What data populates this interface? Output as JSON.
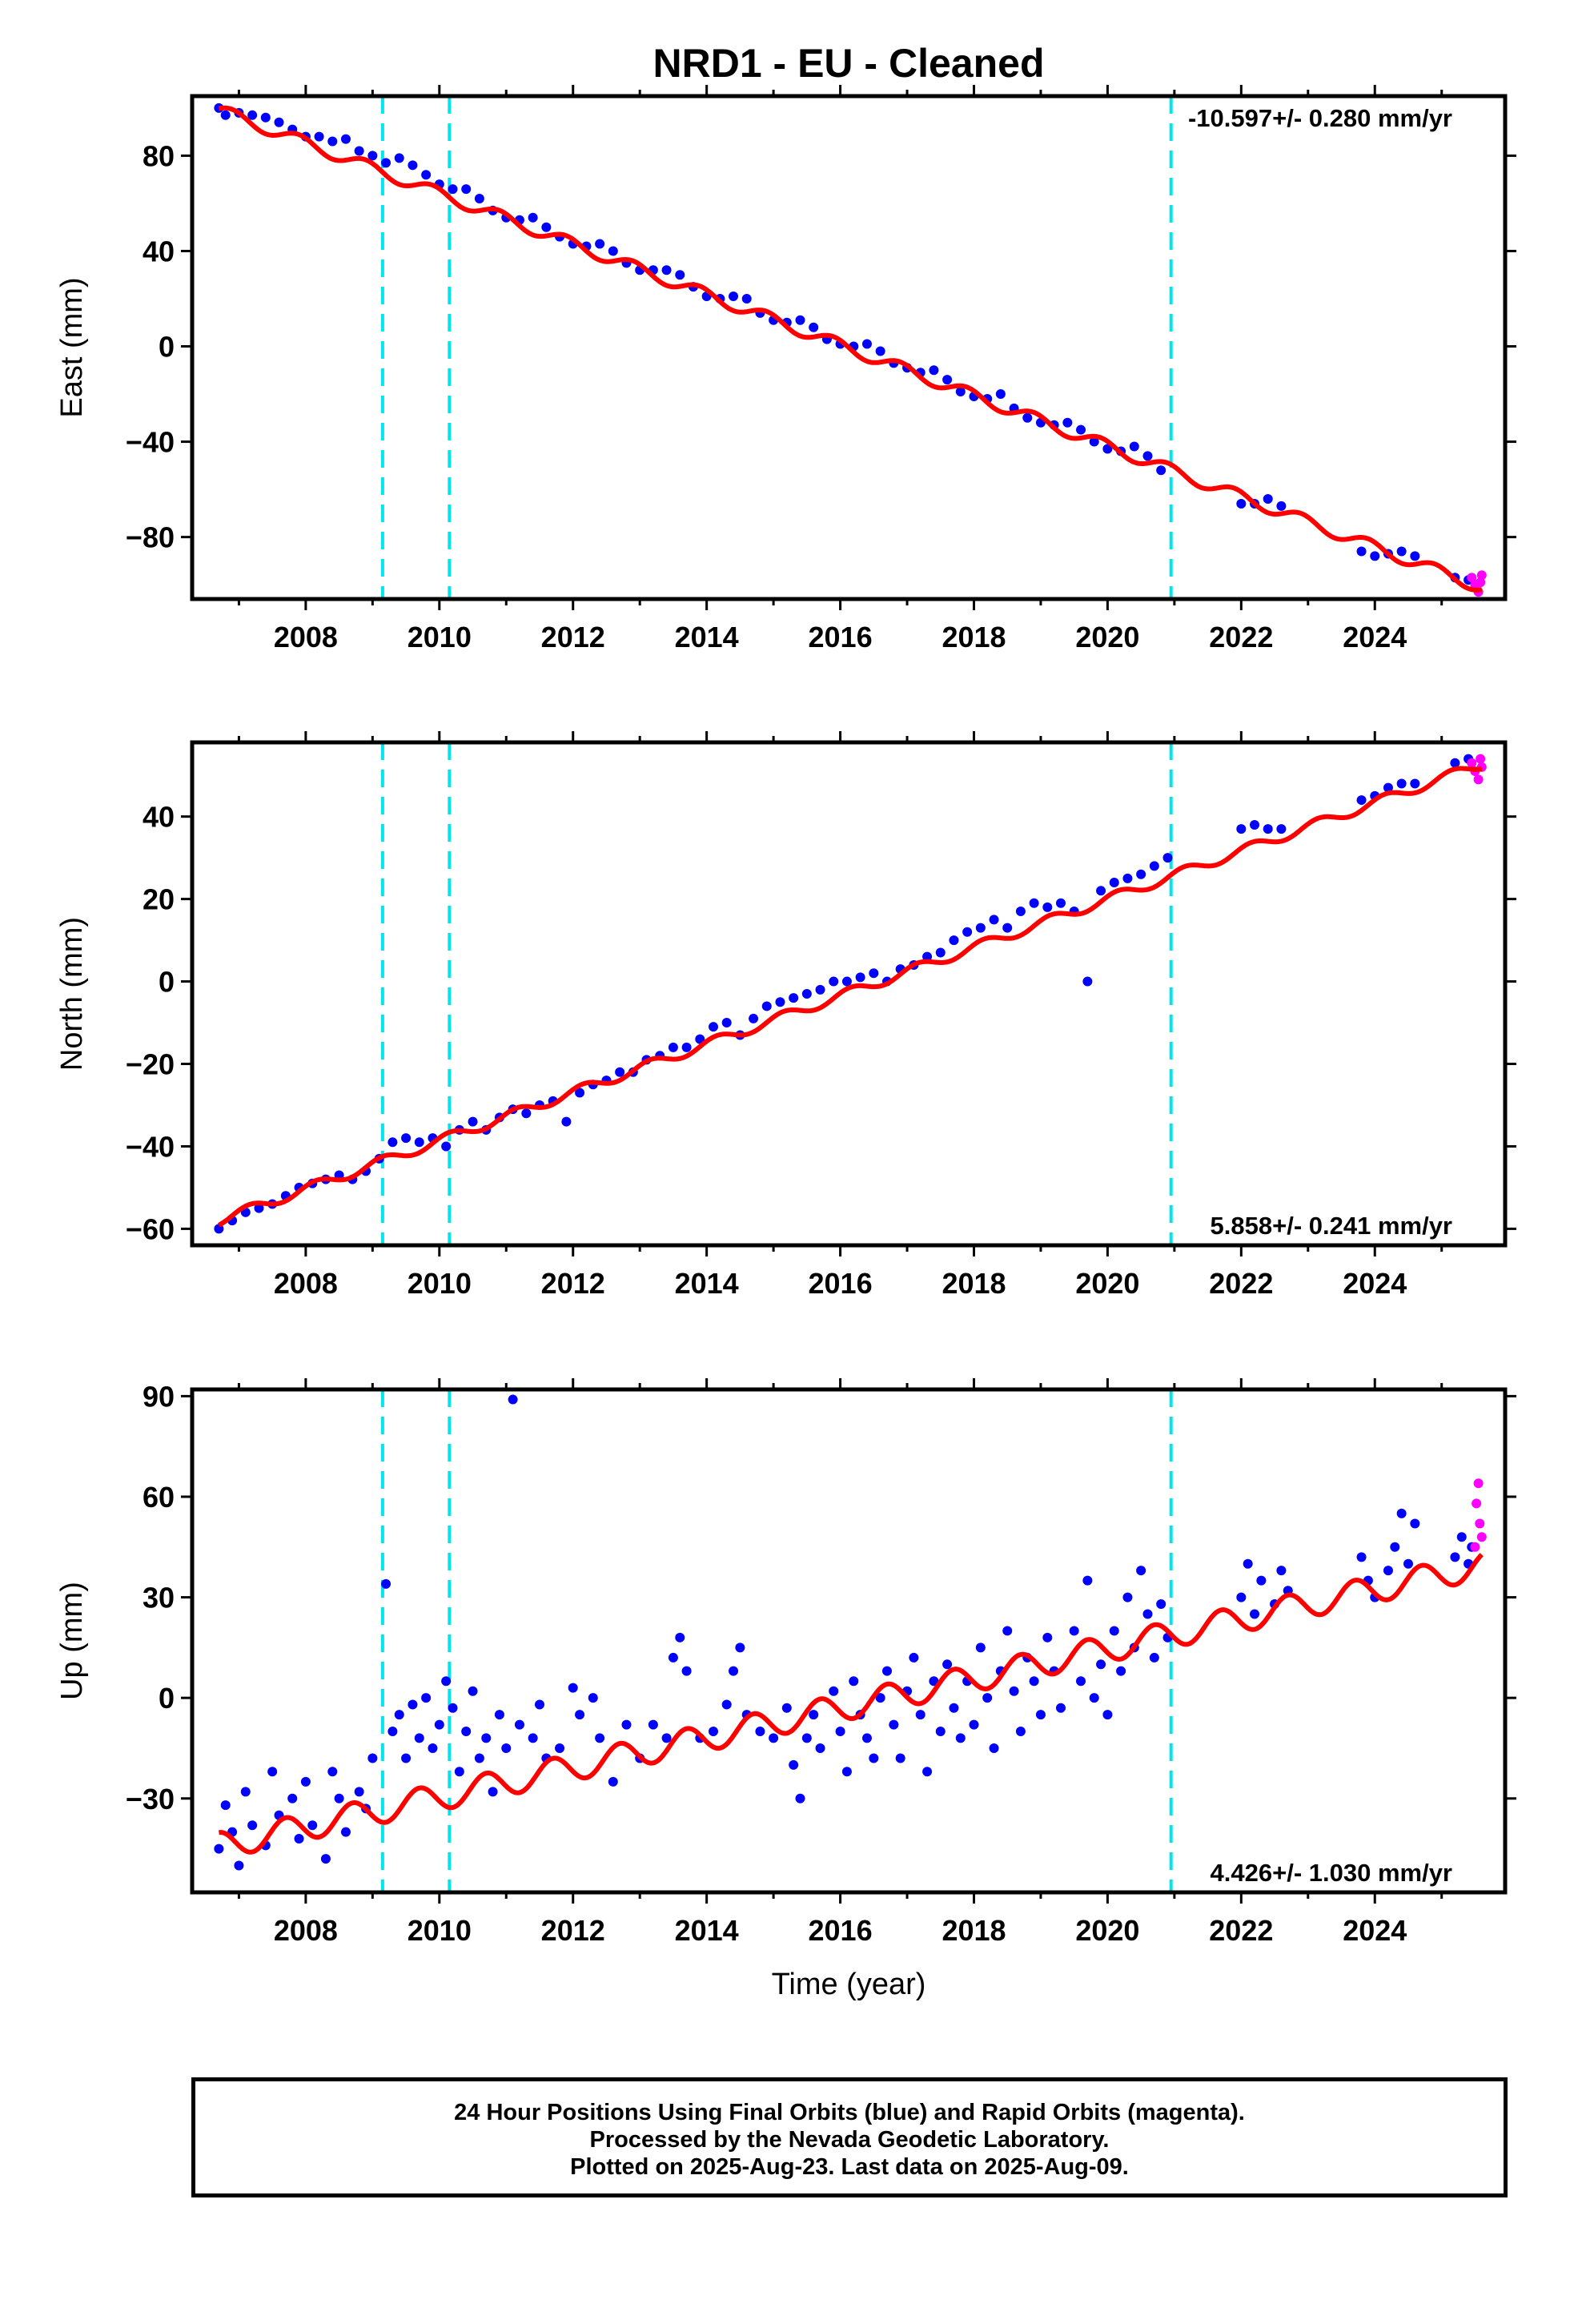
{
  "title": "NRD1  - EU - Cleaned",
  "xlabel": "Time (year)",
  "footer": {
    "line1": "24 Hour Positions Using Final Orbits (blue) and Rapid Orbits (magenta).",
    "line2": "Processed by the Nevada Geodetic Laboratory.",
    "line3": "Plotted on 2025-Aug-23. Last data on 2025-Aug-09."
  },
  "colors": {
    "final_orbits": "#0000ff",
    "rapid_orbits": "#ff00ff",
    "model": "#ff0000",
    "events": "#00e5ee"
  },
  "chart_data": [
    {
      "type": "scatter",
      "component": "East",
      "ylabel": "East (mm)",
      "rate_text": "-10.597+/- 0.280 mm/yr",
      "rate_position": "top-right",
      "xlim": [
        2006.3,
        2025.95
      ],
      "ylim": [
        -106,
        105
      ],
      "xticks": [
        2008,
        2010,
        2012,
        2014,
        2016,
        2018,
        2020,
        2022,
        2024
      ],
      "yticks": [
        -80,
        -40,
        0,
        40,
        80
      ],
      "grid": false,
      "event_lines": [
        2009.15,
        2010.15,
        2020.95
      ],
      "trend": {
        "rate": -10.597,
        "ref_year": 2016.0,
        "ref_value": 0.5,
        "amplitude": 2.5,
        "phase": 0.35
      },
      "final_orbits": [
        [
          2006.7,
          100
        ],
        [
          2006.8,
          97
        ],
        [
          2007.0,
          98
        ],
        [
          2007.2,
          97
        ],
        [
          2007.4,
          96
        ],
        [
          2007.6,
          94
        ],
        [
          2007.8,
          91
        ],
        [
          2008.0,
          88
        ],
        [
          2008.2,
          88
        ],
        [
          2008.4,
          86
        ],
        [
          2008.6,
          87
        ],
        [
          2008.8,
          82
        ],
        [
          2009.0,
          80
        ],
        [
          2009.2,
          77
        ],
        [
          2009.4,
          79
        ],
        [
          2009.6,
          76
        ],
        [
          2009.8,
          72
        ],
        [
          2010.0,
          68
        ],
        [
          2010.2,
          66
        ],
        [
          2010.4,
          66
        ],
        [
          2010.6,
          62
        ],
        [
          2010.8,
          57
        ],
        [
          2011.0,
          54
        ],
        [
          2011.2,
          53
        ],
        [
          2011.4,
          54
        ],
        [
          2011.6,
          50
        ],
        [
          2011.8,
          46
        ],
        [
          2012.0,
          43
        ],
        [
          2012.2,
          42
        ],
        [
          2012.4,
          43
        ],
        [
          2012.6,
          40
        ],
        [
          2012.8,
          35
        ],
        [
          2013.0,
          32
        ],
        [
          2013.2,
          32
        ],
        [
          2013.4,
          32
        ],
        [
          2013.6,
          30
        ],
        [
          2013.8,
          25
        ],
        [
          2014.0,
          21
        ],
        [
          2014.2,
          20
        ],
        [
          2014.4,
          21
        ],
        [
          2014.6,
          20
        ],
        [
          2014.8,
          14
        ],
        [
          2015.0,
          11
        ],
        [
          2015.2,
          10
        ],
        [
          2015.4,
          11
        ],
        [
          2015.6,
          8
        ],
        [
          2015.8,
          3
        ],
        [
          2016.0,
          1
        ],
        [
          2016.2,
          0
        ],
        [
          2016.4,
          1
        ],
        [
          2016.6,
          -2
        ],
        [
          2016.8,
          -7
        ],
        [
          2017.0,
          -9
        ],
        [
          2017.2,
          -11
        ],
        [
          2017.4,
          -10
        ],
        [
          2017.6,
          -14
        ],
        [
          2017.8,
          -19
        ],
        [
          2018.0,
          -21
        ],
        [
          2018.2,
          -22
        ],
        [
          2018.4,
          -20
        ],
        [
          2018.6,
          -26
        ],
        [
          2018.8,
          -30
        ],
        [
          2019.0,
          -32
        ],
        [
          2019.2,
          -33
        ],
        [
          2019.4,
          -32
        ],
        [
          2019.6,
          -35
        ],
        [
          2019.8,
          -40
        ],
        [
          2020.0,
          -43
        ],
        [
          2020.2,
          -44
        ],
        [
          2020.4,
          -42
        ],
        [
          2020.6,
          -46
        ],
        [
          2020.8,
          -52
        ],
        [
          2022.0,
          -66
        ],
        [
          2022.2,
          -66
        ],
        [
          2022.4,
          -64
        ],
        [
          2022.6,
          -67
        ],
        [
          2023.8,
          -86
        ],
        [
          2024.0,
          -88
        ],
        [
          2024.2,
          -87
        ],
        [
          2024.4,
          -86
        ],
        [
          2024.6,
          -88
        ],
        [
          2025.2,
          -97
        ],
        [
          2025.4,
          -98
        ]
      ],
      "rapid_orbits": [
        [
          2025.45,
          -97
        ],
        [
          2025.5,
          -100
        ],
        [
          2025.55,
          -103
        ],
        [
          2025.58,
          -99
        ],
        [
          2025.6,
          -96
        ]
      ]
    },
    {
      "type": "scatter",
      "component": "North",
      "ylabel": "North (mm)",
      "rate_text": "5.858+/- 0.241 mm/yr",
      "rate_position": "bottom-right",
      "xlim": [
        2006.3,
        2025.95
      ],
      "ylim": [
        -64,
        58
      ],
      "xticks": [
        2008,
        2010,
        2012,
        2014,
        2016,
        2018,
        2020,
        2022,
        2024
      ],
      "yticks": [
        -60,
        -40,
        -20,
        0,
        20,
        40
      ],
      "grid": false,
      "event_lines": [
        2009.15,
        2010.15,
        2020.95
      ],
      "trend": {
        "rate": 5.858,
        "ref_year": 2016.0,
        "ref_value": -3.5,
        "amplitude": 1.2,
        "phase": 0.1
      },
      "final_orbits": [
        [
          2006.7,
          -60
        ],
        [
          2006.9,
          -58
        ],
        [
          2007.1,
          -56
        ],
        [
          2007.3,
          -55
        ],
        [
          2007.5,
          -54
        ],
        [
          2007.7,
          -52
        ],
        [
          2007.9,
          -50
        ],
        [
          2008.1,
          -49
        ],
        [
          2008.3,
          -48
        ],
        [
          2008.5,
          -47
        ],
        [
          2008.7,
          -48
        ],
        [
          2008.9,
          -46
        ],
        [
          2009.1,
          -43
        ],
        [
          2009.3,
          -39
        ],
        [
          2009.5,
          -38
        ],
        [
          2009.7,
          -39
        ],
        [
          2009.9,
          -38
        ],
        [
          2010.1,
          -40
        ],
        [
          2010.3,
          -36
        ],
        [
          2010.5,
          -34
        ],
        [
          2010.7,
          -36
        ],
        [
          2010.9,
          -33
        ],
        [
          2011.1,
          -31
        ],
        [
          2011.3,
          -32
        ],
        [
          2011.5,
          -30
        ],
        [
          2011.7,
          -29
        ],
        [
          2011.9,
          -34
        ],
        [
          2012.1,
          -27
        ],
        [
          2012.3,
          -25
        ],
        [
          2012.5,
          -24
        ],
        [
          2012.7,
          -22
        ],
        [
          2012.9,
          -22
        ],
        [
          2013.1,
          -19
        ],
        [
          2013.3,
          -18
        ],
        [
          2013.5,
          -16
        ],
        [
          2013.7,
          -16
        ],
        [
          2013.9,
          -14
        ],
        [
          2014.1,
          -11
        ],
        [
          2014.3,
          -10
        ],
        [
          2014.5,
          -13
        ],
        [
          2014.7,
          -9
        ],
        [
          2014.9,
          -6
        ],
        [
          2015.1,
          -5
        ],
        [
          2015.3,
          -4
        ],
        [
          2015.5,
          -3
        ],
        [
          2015.7,
          -2
        ],
        [
          2015.9,
          0
        ],
        [
          2016.1,
          0
        ],
        [
          2016.3,
          1
        ],
        [
          2016.5,
          2
        ],
        [
          2016.7,
          0
        ],
        [
          2016.9,
          3
        ],
        [
          2017.1,
          4
        ],
        [
          2017.3,
          6
        ],
        [
          2017.5,
          7
        ],
        [
          2017.7,
          10
        ],
        [
          2017.9,
          12
        ],
        [
          2018.1,
          13
        ],
        [
          2018.3,
          15
        ],
        [
          2018.5,
          13
        ],
        [
          2018.7,
          17
        ],
        [
          2018.9,
          19
        ],
        [
          2019.1,
          18
        ],
        [
          2019.3,
          19
        ],
        [
          2019.5,
          17
        ],
        [
          2019.7,
          0
        ],
        [
          2019.9,
          22
        ],
        [
          2020.1,
          24
        ],
        [
          2020.3,
          25
        ],
        [
          2020.5,
          26
        ],
        [
          2020.7,
          28
        ],
        [
          2020.9,
          30
        ],
        [
          2022.0,
          37
        ],
        [
          2022.2,
          38
        ],
        [
          2022.4,
          37
        ],
        [
          2022.6,
          37
        ],
        [
          2023.8,
          44
        ],
        [
          2024.0,
          45
        ],
        [
          2024.2,
          47
        ],
        [
          2024.4,
          48
        ],
        [
          2024.6,
          48
        ],
        [
          2025.2,
          53
        ],
        [
          2025.4,
          54
        ]
      ],
      "rapid_orbits": [
        [
          2025.45,
          53
        ],
        [
          2025.5,
          51
        ],
        [
          2025.55,
          49
        ],
        [
          2025.58,
          54
        ],
        [
          2025.6,
          52
        ]
      ]
    },
    {
      "type": "scatter",
      "component": "Up",
      "ylabel": "Up (mm)",
      "rate_text": "4.426+/- 1.030 mm/yr",
      "rate_position": "bottom-right",
      "xlim": [
        2006.3,
        2025.95
      ],
      "ylim": [
        -58,
        92
      ],
      "xticks": [
        2008,
        2010,
        2012,
        2014,
        2016,
        2018,
        2020,
        2022,
        2024
      ],
      "yticks": [
        -30,
        0,
        30,
        60,
        90
      ],
      "grid": false,
      "event_lines": [
        2009.15,
        2010.15,
        2020.95
      ],
      "trend": {
        "rate": 4.426,
        "ref_year": 2016.0,
        "ref_value": -3.0,
        "amplitude": 4.0,
        "phase": 0.55
      },
      "final_orbits": [
        [
          2006.7,
          -45
        ],
        [
          2006.8,
          -32
        ],
        [
          2006.9,
          -40
        ],
        [
          2007.0,
          -50
        ],
        [
          2007.1,
          -28
        ],
        [
          2007.2,
          -38
        ],
        [
          2007.4,
          -44
        ],
        [
          2007.5,
          -22
        ],
        [
          2007.6,
          -35
        ],
        [
          2007.8,
          -30
        ],
        [
          2007.9,
          -42
        ],
        [
          2008.0,
          -25
        ],
        [
          2008.1,
          -38
        ],
        [
          2008.3,
          -48
        ],
        [
          2008.4,
          -22
        ],
        [
          2008.5,
          -30
        ],
        [
          2008.6,
          -40
        ],
        [
          2008.8,
          -28
        ],
        [
          2008.9,
          -33
        ],
        [
          2009.0,
          -18
        ],
        [
          2009.2,
          34
        ],
        [
          2009.3,
          -10
        ],
        [
          2009.4,
          -5
        ],
        [
          2009.5,
          -18
        ],
        [
          2009.6,
          -2
        ],
        [
          2009.7,
          -12
        ],
        [
          2009.8,
          0
        ],
        [
          2009.9,
          -15
        ],
        [
          2010.0,
          -8
        ],
        [
          2010.1,
          5
        ],
        [
          2010.2,
          -3
        ],
        [
          2010.3,
          -22
        ],
        [
          2010.4,
          -10
        ],
        [
          2010.5,
          2
        ],
        [
          2010.6,
          -18
        ],
        [
          2010.7,
          -12
        ],
        [
          2010.8,
          -28
        ],
        [
          2010.9,
          -5
        ],
        [
          2011.0,
          -15
        ],
        [
          2011.1,
          89
        ],
        [
          2011.2,
          -8
        ],
        [
          2011.4,
          -12
        ],
        [
          2011.5,
          -2
        ],
        [
          2011.6,
          -18
        ],
        [
          2011.8,
          -15
        ],
        [
          2012.0,
          3
        ],
        [
          2012.1,
          -5
        ],
        [
          2012.3,
          0
        ],
        [
          2012.4,
          -12
        ],
        [
          2012.6,
          -25
        ],
        [
          2012.8,
          -8
        ],
        [
          2013.0,
          -18
        ],
        [
          2013.2,
          -8
        ],
        [
          2013.4,
          -12
        ],
        [
          2013.5,
          12
        ],
        [
          2013.6,
          18
        ],
        [
          2013.7,
          8
        ],
        [
          2013.9,
          -12
        ],
        [
          2014.1,
          -10
        ],
        [
          2014.3,
          -2
        ],
        [
          2014.4,
          8
        ],
        [
          2014.5,
          15
        ],
        [
          2014.6,
          -5
        ],
        [
          2014.8,
          -10
        ],
        [
          2015.0,
          -12
        ],
        [
          2015.2,
          -3
        ],
        [
          2015.3,
          -20
        ],
        [
          2015.4,
          -30
        ],
        [
          2015.5,
          -12
        ],
        [
          2015.6,
          -5
        ],
        [
          2015.7,
          -15
        ],
        [
          2015.9,
          2
        ],
        [
          2016.0,
          -10
        ],
        [
          2016.1,
          -22
        ],
        [
          2016.2,
          5
        ],
        [
          2016.3,
          -5
        ],
        [
          2016.4,
          -12
        ],
        [
          2016.5,
          -18
        ],
        [
          2016.6,
          0
        ],
        [
          2016.7,
          8
        ],
        [
          2016.8,
          -8
        ],
        [
          2016.9,
          -18
        ],
        [
          2017.0,
          2
        ],
        [
          2017.1,
          12
        ],
        [
          2017.2,
          -5
        ],
        [
          2017.3,
          -22
        ],
        [
          2017.4,
          5
        ],
        [
          2017.5,
          -10
        ],
        [
          2017.6,
          10
        ],
        [
          2017.7,
          -3
        ],
        [
          2017.8,
          -12
        ],
        [
          2017.9,
          5
        ],
        [
          2018.0,
          -8
        ],
        [
          2018.1,
          15
        ],
        [
          2018.2,
          0
        ],
        [
          2018.3,
          -15
        ],
        [
          2018.4,
          8
        ],
        [
          2018.5,
          20
        ],
        [
          2018.6,
          2
        ],
        [
          2018.7,
          -10
        ],
        [
          2018.8,
          12
        ],
        [
          2018.9,
          5
        ],
        [
          2019.0,
          -5
        ],
        [
          2019.1,
          18
        ],
        [
          2019.2,
          8
        ],
        [
          2019.3,
          -3
        ],
        [
          2019.5,
          20
        ],
        [
          2019.6,
          5
        ],
        [
          2019.7,
          35
        ],
        [
          2019.8,
          0
        ],
        [
          2019.9,
          10
        ],
        [
          2020.0,
          -5
        ],
        [
          2020.1,
          20
        ],
        [
          2020.2,
          8
        ],
        [
          2020.3,
          30
        ],
        [
          2020.4,
          15
        ],
        [
          2020.5,
          38
        ],
        [
          2020.6,
          25
        ],
        [
          2020.7,
          12
        ],
        [
          2020.8,
          28
        ],
        [
          2020.9,
          18
        ],
        [
          2022.0,
          30
        ],
        [
          2022.1,
          40
        ],
        [
          2022.2,
          25
        ],
        [
          2022.3,
          35
        ],
        [
          2022.5,
          28
        ],
        [
          2022.6,
          38
        ],
        [
          2022.7,
          32
        ],
        [
          2023.8,
          42
        ],
        [
          2023.9,
          35
        ],
        [
          2024.0,
          30
        ],
        [
          2024.2,
          38
        ],
        [
          2024.3,
          45
        ],
        [
          2024.4,
          55
        ],
        [
          2024.5,
          40
        ],
        [
          2024.6,
          52
        ],
        [
          2025.2,
          42
        ],
        [
          2025.3,
          48
        ],
        [
          2025.4,
          40
        ],
        [
          2025.45,
          45
        ]
      ],
      "rapid_orbits": [
        [
          2025.5,
          45
        ],
        [
          2025.52,
          58
        ],
        [
          2025.55,
          64
        ],
        [
          2025.57,
          52
        ],
        [
          2025.6,
          48
        ]
      ]
    }
  ]
}
